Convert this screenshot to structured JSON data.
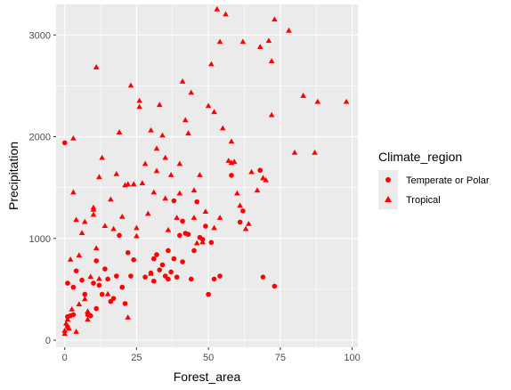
{
  "chart_data": {
    "type": "scatter",
    "title": "",
    "xlabel": "Forest_area",
    "ylabel": "Precipitation",
    "xlim": [
      -3,
      102
    ],
    "ylim": [
      -70,
      3300
    ],
    "xticks": [
      0,
      25,
      50,
      75,
      100
    ],
    "yticks": [
      0,
      1000,
      2000,
      3000
    ],
    "grid": true,
    "legend": {
      "title": "Climate_region",
      "placement": "right"
    },
    "point_color": "#ff0000",
    "panel_background": "#ebebeb",
    "grid_color": "#ffffff",
    "series": [
      {
        "name": "Temperate or Polar",
        "marker": "circle",
        "points": [
          [
            0,
            1940
          ],
          [
            1,
            560
          ],
          [
            1,
            230
          ],
          [
            1,
            130
          ],
          [
            2,
            240
          ],
          [
            3,
            250
          ],
          [
            3,
            520
          ],
          [
            4,
            680
          ],
          [
            6,
            590
          ],
          [
            7,
            450
          ],
          [
            8,
            250
          ],
          [
            9,
            240
          ],
          [
            10,
            560
          ],
          [
            11,
            310
          ],
          [
            11,
            780
          ],
          [
            12,
            540
          ],
          [
            13,
            450
          ],
          [
            14,
            700
          ],
          [
            15,
            600
          ],
          [
            16,
            380
          ],
          [
            17,
            410
          ],
          [
            18,
            630
          ],
          [
            19,
            1030
          ],
          [
            20,
            520
          ],
          [
            21,
            360
          ],
          [
            22,
            860
          ],
          [
            23,
            630
          ],
          [
            24,
            790
          ],
          [
            28,
            620
          ],
          [
            30,
            660
          ],
          [
            31,
            800
          ],
          [
            31,
            580
          ],
          [
            32,
            840
          ],
          [
            33,
            690
          ],
          [
            34,
            740
          ],
          [
            35,
            630
          ],
          [
            36,
            880
          ],
          [
            36,
            600
          ],
          [
            37,
            670
          ],
          [
            38,
            1370
          ],
          [
            38,
            800
          ],
          [
            39,
            620
          ],
          [
            40,
            1030
          ],
          [
            41,
            770
          ],
          [
            41,
            1170
          ],
          [
            42,
            1050
          ],
          [
            43,
            1040
          ],
          [
            44,
            600
          ],
          [
            45,
            880
          ],
          [
            46,
            1360
          ],
          [
            47,
            1010
          ],
          [
            48,
            990
          ],
          [
            49,
            1120
          ],
          [
            50,
            450
          ],
          [
            51,
            960
          ],
          [
            52,
            600
          ],
          [
            54,
            630
          ],
          [
            58,
            1620
          ],
          [
            61,
            1160
          ],
          [
            62,
            1270
          ],
          [
            68,
            1670
          ],
          [
            69,
            620
          ],
          [
            73,
            530
          ]
        ]
      },
      {
        "name": "Tropical",
        "marker": "triangle",
        "points": [
          [
            0,
            60
          ],
          [
            0,
            90
          ],
          [
            0.5,
            160
          ],
          [
            1,
            200
          ],
          [
            1.5,
            110
          ],
          [
            2,
            790
          ],
          [
            2.5,
            300
          ],
          [
            3,
            1980
          ],
          [
            3,
            1450
          ],
          [
            4,
            1180
          ],
          [
            4,
            80
          ],
          [
            5,
            350
          ],
          [
            5,
            830
          ],
          [
            6,
            1050
          ],
          [
            7,
            400
          ],
          [
            7,
            1160
          ],
          [
            8,
            280
          ],
          [
            8,
            200
          ],
          [
            9,
            620
          ],
          [
            10,
            1280
          ],
          [
            10,
            1300
          ],
          [
            10,
            1230
          ],
          [
            11,
            2680
          ],
          [
            11,
            900
          ],
          [
            12,
            1600
          ],
          [
            12,
            600
          ],
          [
            13,
            1790
          ],
          [
            14,
            1120
          ],
          [
            15,
            450
          ],
          [
            16,
            1380
          ],
          [
            17,
            1090
          ],
          [
            18,
            1630
          ],
          [
            19,
            2040
          ],
          [
            20,
            1210
          ],
          [
            21,
            1520
          ],
          [
            22,
            1530
          ],
          [
            22,
            220
          ],
          [
            23,
            2500
          ],
          [
            24,
            1530
          ],
          [
            25,
            1020
          ],
          [
            25,
            1100
          ],
          [
            26,
            2350
          ],
          [
            26,
            2290
          ],
          [
            27,
            1540
          ],
          [
            28,
            1730
          ],
          [
            29,
            1240
          ],
          [
            30,
            2060
          ],
          [
            30,
            650
          ],
          [
            31,
            1450
          ],
          [
            32,
            1660
          ],
          [
            32,
            1880
          ],
          [
            33,
            2310
          ],
          [
            34,
            2010
          ],
          [
            35,
            1390
          ],
          [
            35,
            1790
          ],
          [
            36,
            1080
          ],
          [
            37,
            1620
          ],
          [
            39,
            1200
          ],
          [
            40,
            1730
          ],
          [
            40,
            1440
          ],
          [
            41,
            2540
          ],
          [
            42,
            2160
          ],
          [
            43,
            2030
          ],
          [
            44,
            2430
          ],
          [
            45,
            1200
          ],
          [
            45,
            1470
          ],
          [
            46,
            950
          ],
          [
            47,
            1620
          ],
          [
            48,
            960
          ],
          [
            49,
            1260
          ],
          [
            50,
            2300
          ],
          [
            51,
            2710
          ],
          [
            52,
            2240
          ],
          [
            52,
            1100
          ],
          [
            53,
            3250
          ],
          [
            54,
            2930
          ],
          [
            54,
            1200
          ],
          [
            55,
            2080
          ],
          [
            56,
            3200
          ],
          [
            57,
            1760
          ],
          [
            58,
            1740
          ],
          [
            58,
            1950
          ],
          [
            59,
            1750
          ],
          [
            60,
            1440
          ],
          [
            61,
            1320
          ],
          [
            62,
            2930
          ],
          [
            63,
            1090
          ],
          [
            64,
            1140
          ],
          [
            65,
            1650
          ],
          [
            67,
            1470
          ],
          [
            68,
            2880
          ],
          [
            69,
            1590
          ],
          [
            70,
            1570
          ],
          [
            71,
            2940
          ],
          [
            72,
            2740
          ],
          [
            72,
            2210
          ],
          [
            73,
            3150
          ],
          [
            78,
            3040
          ],
          [
            80,
            1840
          ],
          [
            83,
            2400
          ],
          [
            87,
            1840
          ],
          [
            88,
            2340
          ],
          [
            98,
            2340
          ]
        ]
      }
    ]
  }
}
